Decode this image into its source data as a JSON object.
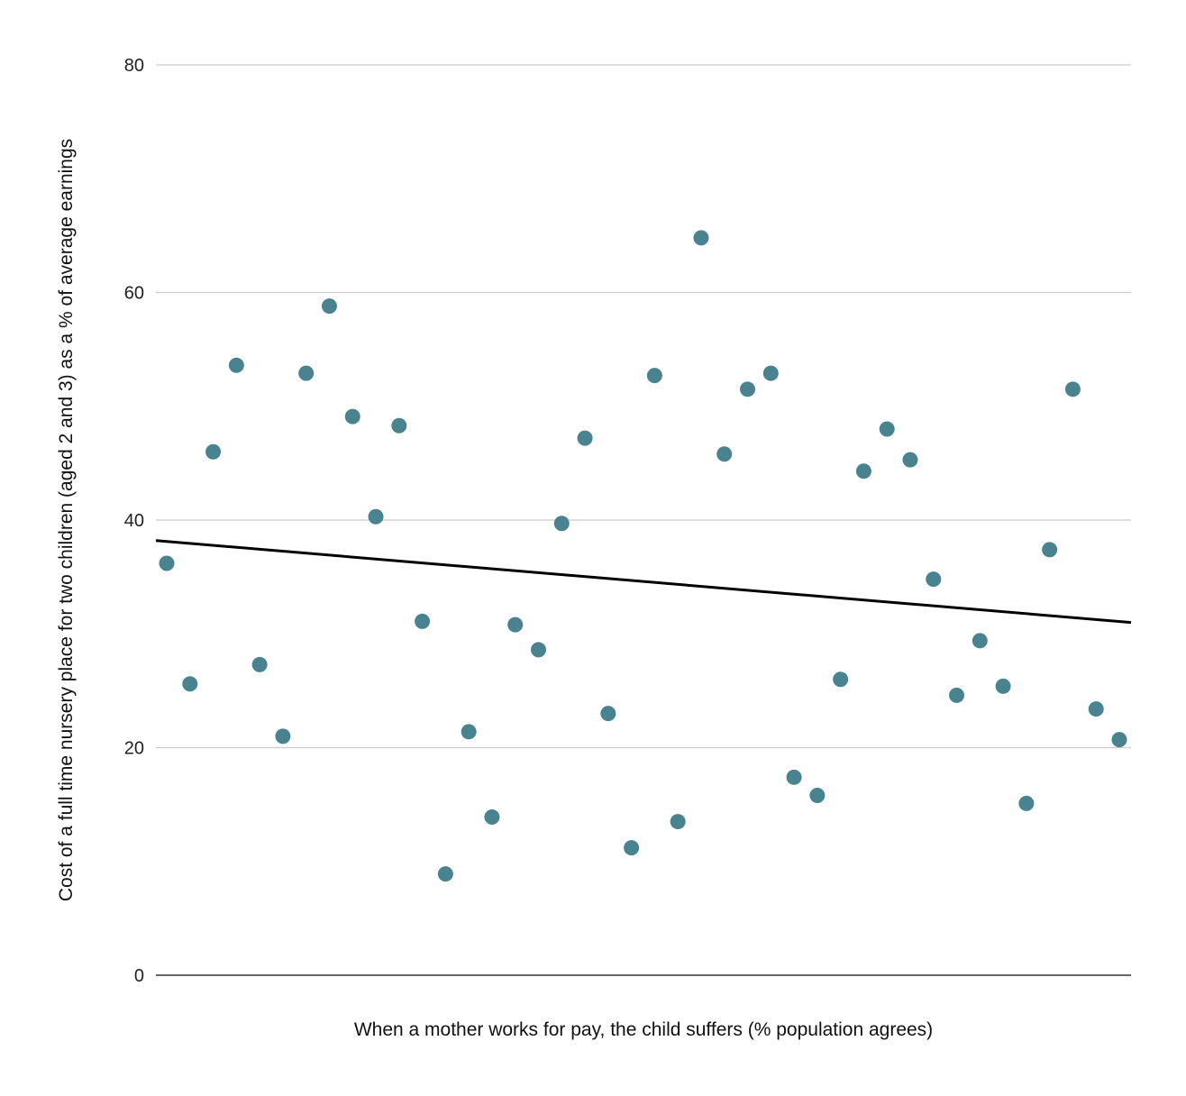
{
  "chart_data": {
    "type": "scatter",
    "title": "",
    "xlabel": "When a mother works for pay, the child suffers (% population agrees)",
    "ylabel": "Cost of a full time nursery place for two children (aged 2 and 3) as a % of average earnings",
    "ylim": [
      0,
      80
    ],
    "yticks": [
      "0",
      "20",
      "40",
      "60",
      "80"
    ],
    "grid": true,
    "legend": "none",
    "point_color": "#4a8390",
    "trendline_color": "#000000",
    "trendline": {
      "y_start": 38.2,
      "y_end": 31.0
    },
    "x": [
      1,
      2,
      3,
      4,
      5,
      6,
      7,
      8,
      9,
      10,
      11,
      12,
      13,
      14,
      15,
      16,
      17,
      18,
      19,
      20,
      21,
      22,
      23,
      24,
      25,
      26,
      27,
      28,
      29,
      30,
      31,
      32,
      33,
      34,
      35,
      36,
      37,
      38,
      39,
      40,
      41,
      42
    ],
    "y": [
      36.2,
      25.6,
      46.0,
      53.6,
      27.3,
      21.0,
      52.9,
      58.8,
      49.1,
      40.3,
      48.3,
      31.1,
      8.9,
      21.4,
      13.9,
      30.8,
      28.6,
      39.7,
      47.2,
      23.0,
      11.2,
      52.7,
      13.5,
      64.8,
      45.8,
      51.5,
      52.9,
      17.4,
      15.8,
      26.0,
      44.3,
      48.0,
      45.3,
      34.8,
      24.6,
      29.4,
      25.4,
      15.1,
      37.4,
      51.5,
      23.4,
      20.7
    ]
  }
}
